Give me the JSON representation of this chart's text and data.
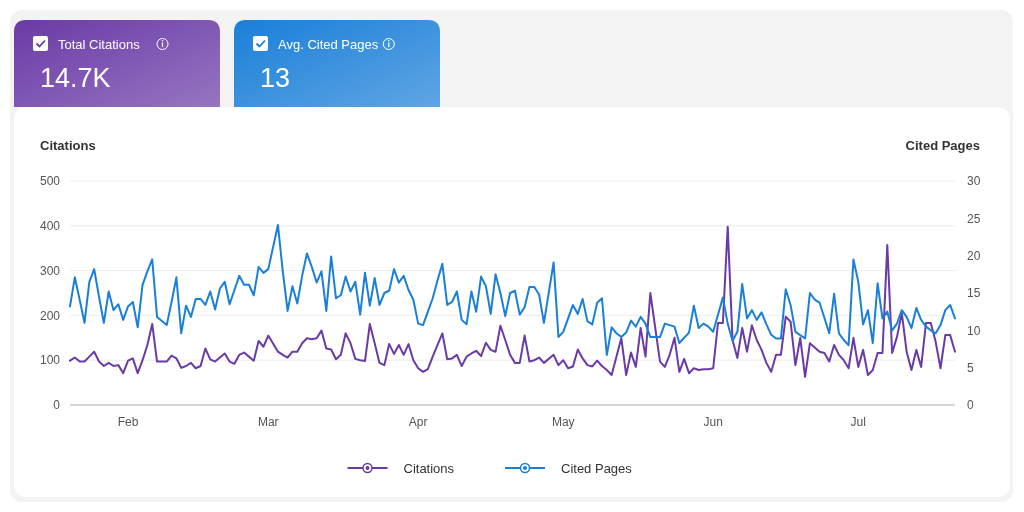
{
  "chart_data": {
    "type": "line",
    "ylabel": "Citations",
    "y2label": "Cited Pages",
    "annotations": [
      "Total Citations",
      "14.7K",
      "Avg. Cited Pages",
      "13"
    ],
    "xlim": [
      "--01-20",
      "--07-21"
    ],
    "xticks": [
      {
        "value": "--02-01",
        "label": "Feb"
      },
      {
        "value": "--03-01",
        "label": "Mar"
      },
      {
        "value": "--04-01",
        "label": "Apr"
      },
      {
        "value": "--05-01",
        "label": "May"
      },
      {
        "value": "--06-01",
        "label": "Jun"
      },
      {
        "value": "--07-01",
        "label": "Jul"
      }
    ],
    "ylim": [
      0,
      500
    ],
    "yticks": [
      0,
      100,
      200,
      300,
      400,
      500
    ],
    "y2lim": [
      0,
      30
    ],
    "y2ticks": [
      0,
      5,
      10,
      15,
      20,
      25,
      30
    ],
    "grid": "y",
    "legend": "bottom",
    "line_style": "solid",
    "series": [
      {
        "name": "Citations",
        "color": "#6a3aa6",
        "x": [
          "--01-20",
          "--01-21",
          "--01-22",
          "--01-23",
          "--01-24",
          "--01-25",
          "--01-26",
          "--01-27",
          "--01-28",
          "--01-29",
          "--01-30",
          "--01-31",
          "--02-01",
          "--02-02",
          "--02-03",
          "--02-04",
          "--02-05",
          "--02-06",
          "--02-07",
          "--02-09",
          "--02-10",
          "--02-11",
          "--02-12",
          "--02-13",
          "--02-14",
          "--02-15",
          "--02-16",
          "--02-17",
          "--02-18",
          "--02-19",
          "--02-20",
          "--02-21",
          "--02-22",
          "--02-23",
          "--02-24",
          "--02-25",
          "--02-26",
          "--02-27",
          "--02-28",
          "--02-29",
          "--03-01",
          "--03-03",
          "--03-04",
          "--03-05",
          "--03-06",
          "--03-07",
          "--03-08",
          "--03-09",
          "--03-10",
          "--03-11",
          "--03-12",
          "--03-13",
          "--03-14",
          "--03-15",
          "--03-16",
          "--03-17",
          "--03-18",
          "--03-19",
          "--03-20",
          "--03-21",
          "--03-22",
          "--03-23",
          "--03-24",
          "--03-25",
          "--03-26",
          "--03-27",
          "--03-28",
          "--03-29",
          "--03-30",
          "--03-31",
          "--04-01",
          "--04-02",
          "--04-03",
          "--04-04",
          "--04-05",
          "--04-06",
          "--04-07",
          "--04-08",
          "--04-09",
          "--04-10",
          "--04-11",
          "--04-12",
          "--04-13",
          "--04-14",
          "--04-15",
          "--04-16",
          "--04-17",
          "--04-18",
          "--04-19",
          "--04-20",
          "--04-21",
          "--04-22",
          "--04-23",
          "--04-24",
          "--04-25",
          "--04-26",
          "--04-27",
          "--04-29",
          "--04-30",
          "--05-01",
          "--05-02",
          "--05-03",
          "--05-04",
          "--05-05",
          "--05-06",
          "--05-07",
          "--05-08",
          "--05-09",
          "--05-10",
          "--05-11",
          "--05-12",
          "--05-13",
          "--05-14",
          "--05-15",
          "--05-16",
          "--05-17",
          "--05-18",
          "--05-19",
          "--05-21",
          "--05-22",
          "--05-23",
          "--05-24",
          "--05-25",
          "--05-26",
          "--05-27",
          "--05-28",
          "--05-29",
          "--05-30",
          "--05-31",
          "--06-01",
          "--06-02",
          "--06-03",
          "--06-04",
          "--06-05",
          "--06-06",
          "--06-07",
          "--06-08",
          "--06-09",
          "--06-10",
          "--06-11",
          "--06-12",
          "--06-13",
          "--06-14",
          "--06-15",
          "--06-16",
          "--06-17",
          "--06-18",
          "--06-19",
          "--06-20",
          "--06-21",
          "--06-23",
          "--06-24",
          "--06-25",
          "--06-26",
          "--06-27",
          "--06-28",
          "--06-29",
          "--06-30",
          "--07-01",
          "--07-02",
          "--07-03",
          "--07-04",
          "--07-05",
          "--07-06",
          "--07-07",
          "--07-08",
          "--07-09",
          "--07-10",
          "--07-11",
          "--07-12",
          "--07-13",
          "--07-14",
          "--07-15",
          "--07-16",
          "--07-17",
          "--07-18",
          "--07-19",
          "--07-20",
          "--07-21"
        ],
        "values": [
          99,
          106,
          97,
          97,
          108,
          119,
          97,
          87,
          94,
          87,
          89,
          71,
          99,
          104,
          71,
          100,
          134,
          181,
          97,
          97,
          110,
          104,
          83,
          87,
          94,
          82,
          87,
          126,
          102,
          97,
          106,
          115,
          97,
          92,
          112,
          117,
          108,
          99,
          143,
          130,
          155,
          119,
          112,
          106,
          119,
          119,
          138,
          149,
          147,
          149,
          166,
          126,
          124,
          102,
          112,
          160,
          138,
          103,
          100,
          98,
          181,
          138,
          94,
          89,
          136,
          114,
          134,
          112,
          136,
          100,
          82,
          74,
          80,
          108,
          134,
          160,
          102,
          104,
          112,
          87,
          108,
          115,
          121,
          109,
          139,
          123,
          119,
          177,
          145,
          112,
          94,
          94,
          155,
          97,
          100,
          106,
          94,
          112,
          89,
          100,
          82,
          86,
          124,
          104,
          89,
          86,
          99,
          87,
          78,
          67,
          108,
          149,
          67,
          117,
          85,
          172,
          108,
          250,
          97,
          85,
          112,
          150,
          74,
          103,
          71,
          82,
          78,
          80,
          80,
          82,
          183,
          183,
          398,
          145,
          105,
          172,
          119,
          178,
          145,
          123,
          94,
          74,
          112,
          112,
          197,
          186,
          89,
          150,
          63,
          138,
          119,
          116,
          97,
          134,
          112,
          100,
          82,
          150,
          85,
          123,
          67,
          78,
          116,
          116,
          357,
          116,
          152,
          205,
          119,
          78,
          123,
          85,
          183,
          183,
          141,
          82,
          156,
          156,
          119
        ]
      },
      {
        "name": "Cited Pages",
        "color": "#1a7fd8",
        "axis": "y2",
        "x": [
          "--01-20",
          "--01-21",
          "--01-22",
          "--01-23",
          "--01-24",
          "--01-25",
          "--01-26",
          "--01-27",
          "--01-28",
          "--01-29",
          "--01-30",
          "--01-31",
          "--02-01",
          "--02-02",
          "--02-03",
          "--02-04",
          "--02-05",
          "--02-06",
          "--02-07",
          "--02-09",
          "--02-10",
          "--02-11",
          "--02-12",
          "--02-13",
          "--02-14",
          "--02-15",
          "--02-16",
          "--02-17",
          "--02-18",
          "--02-19",
          "--02-20",
          "--02-21",
          "--02-22",
          "--02-23",
          "--02-24",
          "--02-25",
          "--02-26",
          "--02-27",
          "--02-28",
          "--02-29",
          "--03-01",
          "--03-03",
          "--03-04",
          "--03-05",
          "--03-06",
          "--03-07",
          "--03-08",
          "--03-09",
          "--03-10",
          "--03-11",
          "--03-12",
          "--03-13",
          "--03-14",
          "--03-15",
          "--03-16",
          "--03-17",
          "--03-18",
          "--03-19",
          "--03-20",
          "--03-21",
          "--03-22",
          "--03-23",
          "--03-24",
          "--03-25",
          "--03-26",
          "--03-27",
          "--03-28",
          "--03-29",
          "--03-30",
          "--03-31",
          "--04-01",
          "--04-02",
          "--04-03",
          "--04-04",
          "--04-05",
          "--04-06",
          "--04-07",
          "--04-08",
          "--04-09",
          "--04-10",
          "--04-11",
          "--04-12",
          "--04-13",
          "--04-14",
          "--04-15",
          "--04-16",
          "--04-17",
          "--04-18",
          "--04-19",
          "--04-20",
          "--04-21",
          "--04-22",
          "--04-23",
          "--04-24",
          "--04-25",
          "--04-26",
          "--04-27",
          "--04-29",
          "--04-30",
          "--05-01",
          "--05-02",
          "--05-03",
          "--05-04",
          "--05-05",
          "--05-06",
          "--05-07",
          "--05-08",
          "--05-09",
          "--05-10",
          "--05-11",
          "--05-12",
          "--05-13",
          "--05-14",
          "--05-15",
          "--05-16",
          "--05-17",
          "--05-18",
          "--05-19",
          "--05-21",
          "--05-22",
          "--05-24",
          "--05-25",
          "--05-27",
          "--05-28",
          "--05-29",
          "--05-30",
          "--05-31",
          "--06-01",
          "--06-03",
          "--06-04",
          "--06-05",
          "--06-06",
          "--06-07",
          "--06-08",
          "--06-09",
          "--06-10",
          "--06-11",
          "--06-12",
          "--06-13",
          "--06-14",
          "--06-15",
          "--06-16",
          "--06-17",
          "--06-18",
          "--06-20",
          "--06-21",
          "--06-22",
          "--06-23",
          "--06-25",
          "--06-26",
          "--06-27",
          "--06-28",
          "--06-29",
          "--06-30",
          "--07-01",
          "--07-02",
          "--07-03",
          "--07-04",
          "--07-05",
          "--07-06",
          "--07-07",
          "--07-08",
          "--07-09",
          "--07-10",
          "--07-11",
          "--07-12",
          "--07-13",
          "--07-14",
          "--07-15",
          "--07-16",
          "--07-17",
          "--07-18",
          "--07-19",
          "--07-20",
          "--07-21"
        ],
        "values": [
          13.2,
          17.1,
          14.1,
          11.0,
          16.5,
          18.2,
          14.5,
          11.0,
          15.2,
          12.7,
          13.5,
          11.4,
          13.2,
          13.8,
          10.4,
          16.1,
          17.9,
          19.5,
          11.8,
          10.7,
          13.8,
          17.1,
          9.6,
          13.3,
          11.8,
          14.2,
          14.2,
          13.4,
          15.2,
          12.8,
          15.6,
          16.5,
          13.5,
          15.4,
          17.3,
          16.1,
          16.1,
          14.7,
          18.5,
          17.7,
          18.2,
          24.1,
          17.9,
          12.6,
          15.9,
          13.6,
          17.3,
          20.3,
          18.5,
          16.4,
          17.9,
          12.6,
          19.9,
          14.3,
          14.7,
          17.2,
          15.2,
          16.5,
          12.1,
          17.7,
          13.3,
          17.0,
          13.4,
          15.0,
          15.3,
          18.2,
          16.4,
          17.3,
          15.4,
          14.1,
          10.9,
          10.7,
          12.5,
          14.3,
          16.7,
          18.9,
          13.4,
          13.8,
          15.2,
          11.4,
          10.8,
          15.2,
          12.5,
          17.2,
          15.9,
          12.2,
          17.5,
          15.0,
          11.9,
          15.0,
          15.3,
          12.1,
          13.1,
          15.8,
          15.8,
          14.8,
          11.0,
          19.1,
          9.1,
          9.8,
          11.6,
          13.4,
          12.2,
          14.2,
          11.2,
          10.8,
          13.7,
          14.3,
          6.7,
          10.4,
          9.6,
          9.1,
          9.7,
          11.3,
          10.5,
          11.8,
          10.9,
          9.1,
          9.1,
          10.9,
          10.5,
          8.3,
          9.7,
          13.3,
          10.3,
          10.9,
          10.5,
          9.8,
          14.4,
          10.9,
          8.6,
          9.8,
          16.2,
          11.6,
          12.7,
          11.4,
          12.4,
          10.8,
          9.4,
          8.9,
          8.9,
          15.5,
          13.4,
          9.8,
          8.9,
          15.0,
          14.1,
          13.7,
          9.6,
          14.9,
          9.6,
          8.7,
          8.0,
          19.5,
          16.5,
          10.8,
          12.7,
          8.3,
          16.3,
          11.6,
          12.5,
          10.0,
          10.9,
          12.7,
          11.8,
          10.3,
          13.0,
          11.4,
          10.5,
          10.0,
          9.6,
          10.7,
          12.7,
          13.4,
          11.6
        ]
      }
    ]
  }
}
